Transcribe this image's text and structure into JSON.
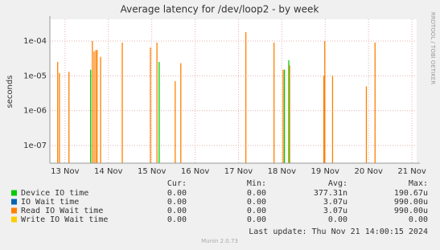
{
  "chart_data": {
    "type": "spike",
    "title": "Average latency for /dev/loop2 - by week",
    "y_label": "seconds",
    "side_label": "RRDTOOL / TOBI OETIKER",
    "log_y": true,
    "grid": true,
    "xlim": [
      12.65,
      21.11
    ],
    "xticks": [
      {
        "value": 13,
        "label": "13 Nov"
      },
      {
        "value": 14,
        "label": "14 Nov"
      },
      {
        "value": 15,
        "label": "15 Nov"
      },
      {
        "value": 16,
        "label": "16 Nov"
      },
      {
        "value": 17,
        "label": "17 Nov"
      },
      {
        "value": 18,
        "label": "18 Nov"
      },
      {
        "value": 19,
        "label": "19 Nov"
      },
      {
        "value": 20,
        "label": "20 Nov"
      },
      {
        "value": 21,
        "label": "21 Nov"
      }
    ],
    "ylim": [
      3.1e-08,
      0.00042
    ],
    "yticks": [
      {
        "value": 1e-07,
        "label": "1e-07"
      },
      {
        "value": 1e-06,
        "label": "1e-06"
      },
      {
        "value": 1e-05,
        "label": "1e-05"
      },
      {
        "value": 0.0001,
        "label": "1e-04"
      }
    ],
    "legend_headers": [
      "Cur:",
      "Min:",
      "Avg:",
      "Max:"
    ],
    "series": [
      {
        "name": "Device IO time",
        "color": "#00cc00",
        "x": [
          13.59,
          15.17,
          18.06,
          18.16,
          18.97
        ],
        "values": [
          1.5e-05,
          2.5e-05,
          1.5e-05,
          2.8e-05,
          8e-06
        ],
        "legend_stats": [
          "0.00",
          "0.00",
          "377.31n",
          "190.67u"
        ]
      },
      {
        "name": "IO Wait time",
        "color": "#0066b3",
        "x": [],
        "values": [],
        "legend_stats": [
          "0.00",
          "0.00",
          "3.07u",
          "990.00u"
        ]
      },
      {
        "name": "Read IO Wait time",
        "color": "#ff8000",
        "x": [
          12.83,
          12.87,
          13.09,
          13.63,
          13.67,
          13.71,
          13.74,
          13.82,
          14.32,
          14.97,
          15.12,
          15.54,
          15.67,
          17.17,
          17.82,
          18.03,
          18.18,
          18.97,
          18.99,
          19.17,
          19.95,
          20.15
        ],
        "values": [
          2.5e-05,
          1.2e-05,
          1.3e-05,
          0.0001,
          5e-05,
          5.5e-05,
          5.5e-05,
          3.5e-05,
          9e-05,
          6.5e-05,
          9e-05,
          7e-06,
          2.3e-05,
          0.00018,
          9e-05,
          1.5e-05,
          2e-05,
          1e-05,
          0.0001,
          1e-05,
          5e-06,
          9e-05
        ],
        "legend_stats": [
          "0.00",
          "0.00",
          "3.07u",
          "990.00u"
        ]
      },
      {
        "name": "Write IO Wait time",
        "color": "#ffcc00",
        "x": [],
        "values": [],
        "legend_stats": [
          "0.00",
          "0.00",
          "0.00",
          "0.00"
        ]
      }
    ],
    "last_update": "Last update: Thu Nov 21 14:00:15 2024",
    "footer": "Munin 2.0.73"
  }
}
